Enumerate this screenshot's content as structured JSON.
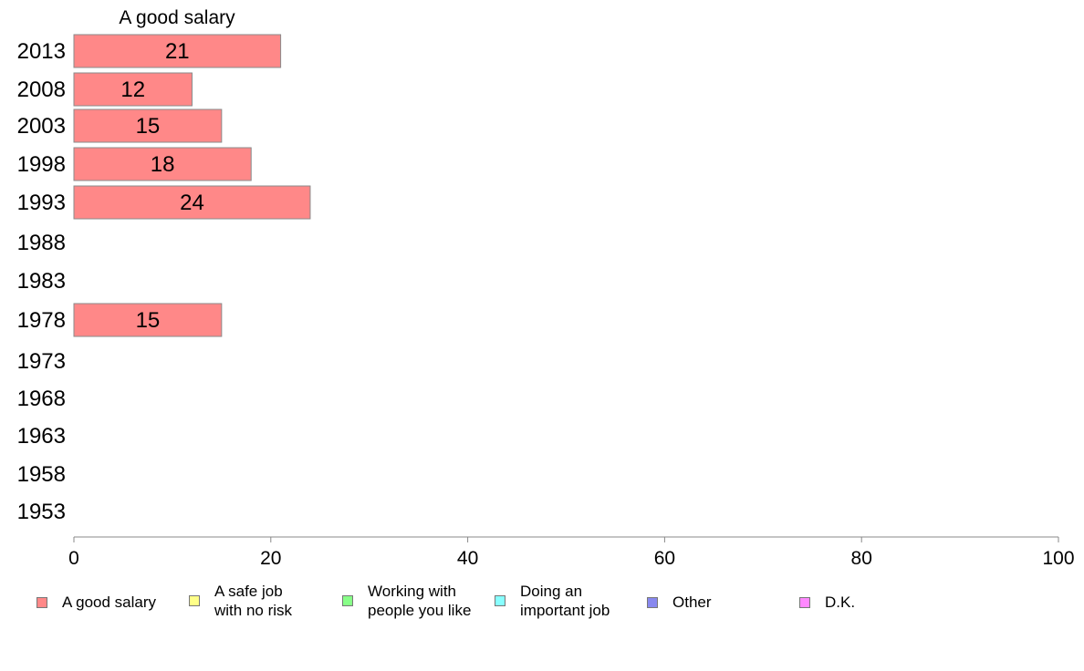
{
  "chart_data": {
    "type": "bar",
    "orientation": "horizontal",
    "title": "A good salary",
    "categories": [
      "2013",
      "2008",
      "2003",
      "1998",
      "1993",
      "1988",
      "1983",
      "1978",
      "1973",
      "1968",
      "1963",
      "1958",
      "1953"
    ],
    "series": [
      {
        "name": "A good salary",
        "color": "#ff8888",
        "values": [
          21,
          12,
          15,
          18,
          24,
          null,
          null,
          15,
          null,
          null,
          null,
          null,
          null
        ]
      }
    ],
    "xlim": [
      0,
      100
    ],
    "xticks": [
      0,
      20,
      40,
      60,
      80,
      100
    ],
    "grid": false,
    "legend_position": "bottom"
  },
  "legend": [
    {
      "label": "A good salary",
      "color": "#ff8888"
    },
    {
      "label": "A safe job\nwith no risk",
      "color": "#ffff88"
    },
    {
      "label": "Working with\npeople you like",
      "color": "#88ff88"
    },
    {
      "label": "Doing an\nimportant job",
      "color": "#88ffff"
    },
    {
      "label": "Other",
      "color": "#8888ee"
    },
    {
      "label": "D.K.",
      "color": "#ff88ff"
    }
  ]
}
